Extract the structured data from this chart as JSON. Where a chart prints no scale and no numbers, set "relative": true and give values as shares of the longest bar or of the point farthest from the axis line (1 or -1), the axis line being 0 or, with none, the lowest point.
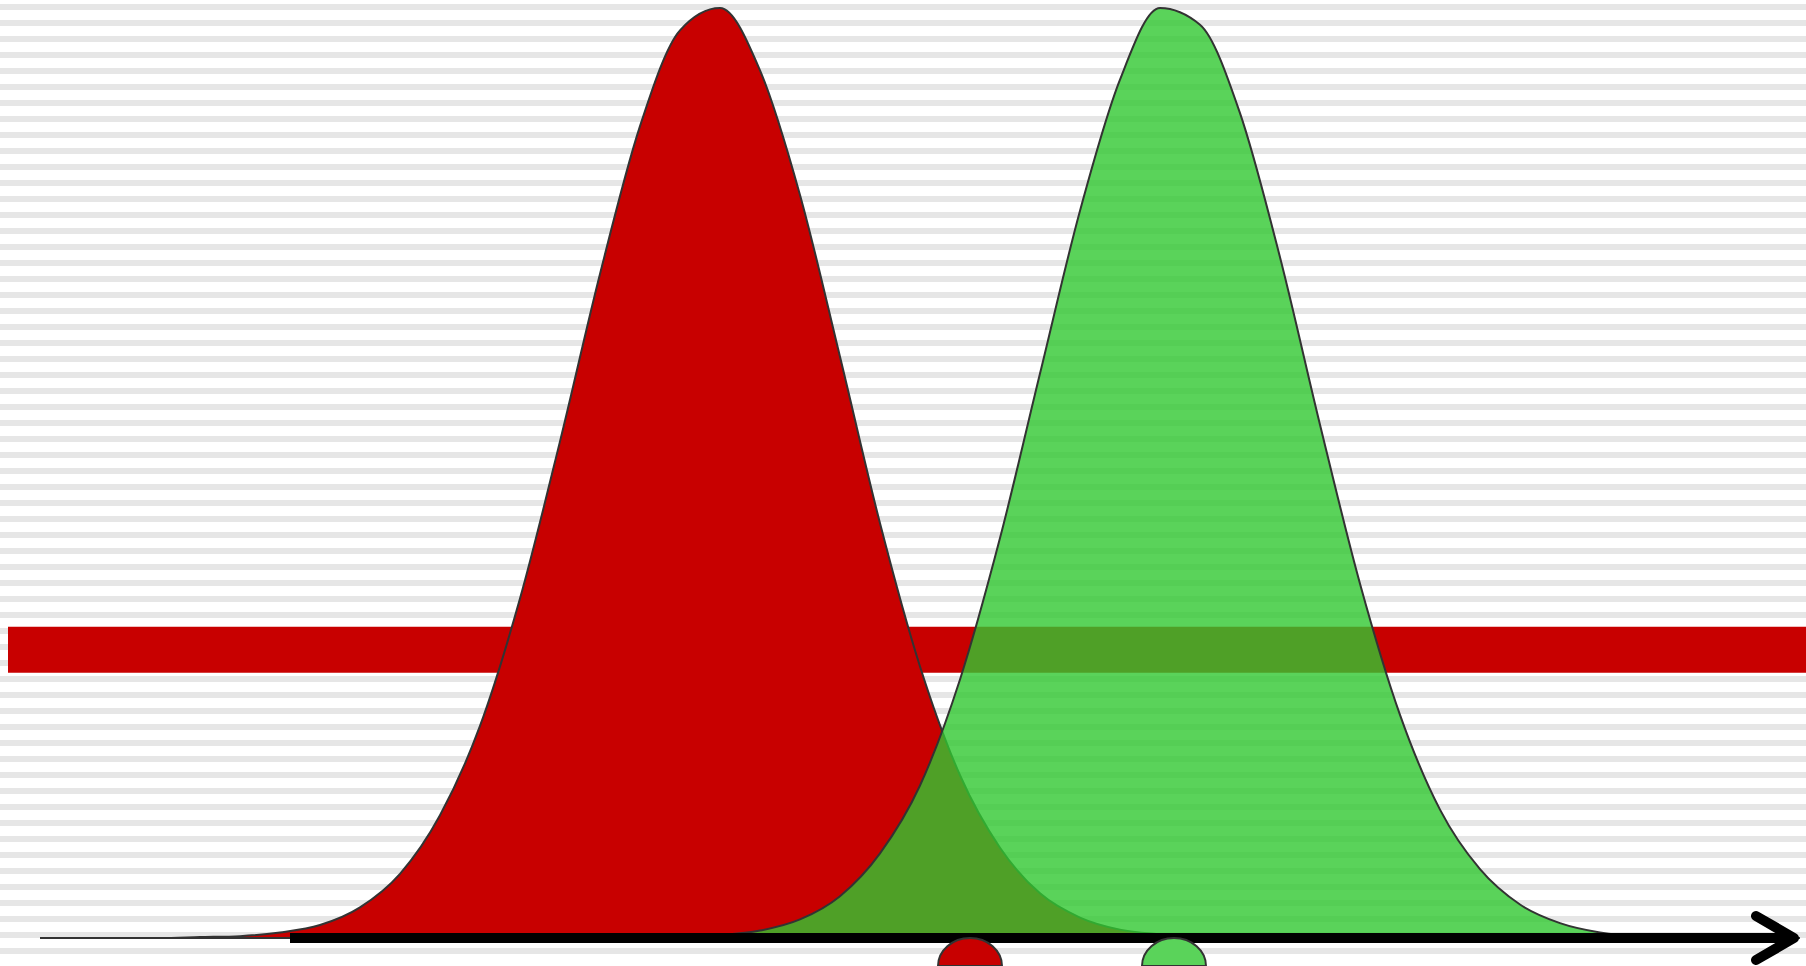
{
  "chart_data": {
    "type": "area",
    "relative": true,
    "grid": false,
    "categories": [
      null,
      null,
      null,
      null,
      null,
      null,
      null,
      null,
      null,
      null,
      null,
      null,
      null,
      null,
      null,
      null,
      null,
      null,
      null,
      null,
      null,
      null,
      null,
      null,
      null,
      null,
      null,
      null,
      null,
      null,
      null,
      null,
      null,
      null,
      null,
      null,
      null,
      null,
      null,
      null,
      null,
      null,
      null,
      null,
      null
    ],
    "series": [
      {
        "color": "#c80000",
        "values": [
          0,
          0,
          0,
          0,
          0.001,
          0.002,
          0.006,
          0.014,
          0.033,
          0.069,
          0.132,
          0.228,
          0.365,
          0.534,
          0.714,
          0.873,
          0.976,
          1,
          0.933,
          0.799,
          0.625,
          0.446,
          0.292,
          0.175,
          0.097,
          0.048,
          0.022,
          0.009,
          0.004,
          0.001,
          0,
          0,
          0,
          0,
          0,
          0,
          0,
          0,
          0,
          0,
          0,
          0,
          0,
          0,
          0
        ]
      },
      {
        "color": "#5ad35a",
        "values": [
          null,
          null,
          null,
          null,
          null,
          null,
          0,
          0,
          0,
          0,
          0,
          0,
          0,
          0,
          0,
          0,
          0.001,
          0.003,
          0.008,
          0.02,
          0.045,
          0.091,
          0.164,
          0.278,
          0.43,
          0.607,
          0.782,
          0.923,
          1,
          0.982,
          0.887,
          0.732,
          0.552,
          0.381,
          0.24,
          0.138,
          0.074,
          0.036,
          0.016,
          0.006,
          0.002,
          0.001,
          0,
          0,
          0
        ]
      }
    ],
    "ref_lines": [
      {
        "axis": "y",
        "value": 0.31,
        "color": "#c80000"
      }
    ]
  }
}
